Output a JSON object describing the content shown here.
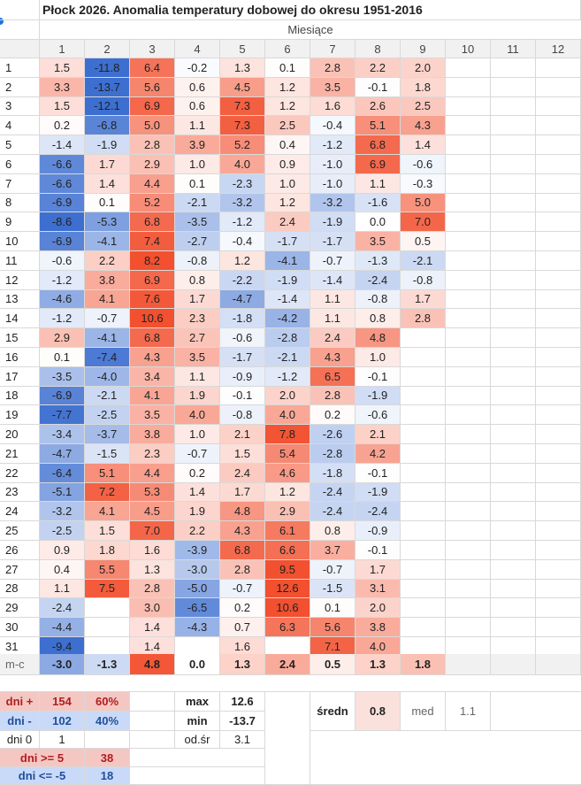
{
  "title": "Płock 2026. Anomalia temperatury dobowej  do okresu 1951-2016",
  "subheader": "Miesiące",
  "months": [
    "1",
    "2",
    "3",
    "4",
    "5",
    "6",
    "7",
    "8",
    "9",
    "10",
    "11",
    "12"
  ],
  "days": [
    "1",
    "2",
    "3",
    "4",
    "5",
    "6",
    "7",
    "8",
    "9",
    "10",
    "11",
    "12",
    "13",
    "14",
    "15",
    "16",
    "17",
    "18",
    "19",
    "20",
    "21",
    "22",
    "23",
    "24",
    "25",
    "26",
    "27",
    "28",
    "29",
    "30",
    "31"
  ],
  "columns": [
    [
      "1.5",
      "3.3",
      "1.5",
      "0.2",
      "-1.4",
      "-6.6",
      "-6.6",
      "-6.9",
      "-8.6",
      "-6.9",
      "-0.6",
      "-1.2",
      "-4.6",
      "-1.2",
      "2.9",
      "0.1",
      "-3.5",
      "-6.9",
      "-7.7",
      "-3.4",
      "-4.7",
      "-6.4",
      "-5.1",
      "-3.2",
      "-2.5",
      "0.9",
      "0.4",
      "1.1",
      "-2.4",
      "-4.4",
      "-9.4"
    ],
    [
      "-11.8",
      "-13.7",
      "-12.1",
      "-6.8",
      "-1.9",
      "1.7",
      "1.4",
      "0.1",
      "-5.3",
      "-4.1",
      "2.2",
      "3.8",
      "4.1",
      "-0.7",
      "-4.1",
      "-7.4",
      "-4.0",
      "-2.1",
      "-2.5",
      "-3.7",
      "-1.5",
      "5.1",
      "7.2",
      "4.1",
      "1.5",
      "1.8",
      "5.5",
      "7.5",
      "",
      "",
      ""
    ],
    [
      "6.4",
      "5.6",
      "6.9",
      "5.0",
      "2.8",
      "2.9",
      "4.4",
      "5.2",
      "6.8",
      "7.4",
      "8.2",
      "6.9",
      "7.6",
      "10.6",
      "6.8",
      "4.3",
      "3.4",
      "4.1",
      "3.5",
      "3.8",
      "2.3",
      "4.4",
      "5.3",
      "4.5",
      "7.0",
      "1.6",
      "1.3",
      "2.8",
      "3.0",
      "1.4",
      "1.4"
    ],
    [
      "-0.2",
      "0.6",
      "0.6",
      "1.1",
      "3.9",
      "1.0",
      "0.1",
      "-2.1",
      "-3.5",
      "-2.7",
      "-0.8",
      "0.8",
      "1.7",
      "2.3",
      "2.7",
      "3.5",
      "1.1",
      "1.9",
      "4.0",
      "1.0",
      "-0.7",
      "0.2",
      "1.4",
      "1.9",
      "2.2",
      "-3.9",
      "-3.0",
      "-5.0",
      "-6.5",
      "-4.3",
      ""
    ],
    [
      "1.3",
      "4.5",
      "7.3",
      "7.3",
      "5.2",
      "4.0",
      "-2.3",
      "-3.2",
      "-1.2",
      "-0.4",
      "1.2",
      "-2.2",
      "-4.7",
      "-1.8",
      "-0.6",
      "-1.7",
      "-0.9",
      "-0.1",
      "-0.8",
      "2.1",
      "1.5",
      "2.4",
      "1.7",
      "4.8",
      "4.3",
      "6.8",
      "2.8",
      "-0.7",
      "0.2",
      "0.7",
      "1.6"
    ],
    [
      "0.1",
      "1.2",
      "1.2",
      "2.5",
      "0.4",
      "0.9",
      "1.0",
      "1.2",
      "2.4",
      "-1.7",
      "-4.1",
      "-1.9",
      "-1.4",
      "-4.2",
      "-2.8",
      "-2.1",
      "-1.2",
      "2.0",
      "4.0",
      "7.8",
      "5.4",
      "4.6",
      "1.2",
      "2.9",
      "6.1",
      "6.6",
      "9.5",
      "12.6",
      "10.6",
      "6.3",
      ""
    ],
    [
      "2.8",
      "3.5",
      "1.6",
      "-0.4",
      "-1.2",
      "-1.0",
      "-1.0",
      "-3.2",
      "-1.9",
      "-1.7",
      "-0.7",
      "-1.4",
      "1.1",
      "1.1",
      "2.4",
      "4.3",
      "6.5",
      "2.8",
      "0.2",
      "-2.6",
      "-2.8",
      "-1.8",
      "-2.4",
      "-2.4",
      "0.8",
      "3.7",
      "-0.7",
      "-1.5",
      "0.1",
      "5.6",
      "7.1"
    ],
    [
      "2.2",
      "-0.1",
      "2.6",
      "5.1",
      "6.8",
      "6.9",
      "1.1",
      "-1.6",
      "0.0",
      "3.5",
      "-1.3",
      "-2.4",
      "-0.8",
      "0.8",
      "4.8",
      "1.0",
      "-0.1",
      "-1.9",
      "-0.6",
      "2.1",
      "4.2",
      "-0.1",
      "-1.9",
      "-2.4",
      "-0.9",
      "-0.1",
      "1.7",
      "3.1",
      "2.0",
      "3.8",
      "4.0"
    ],
    [
      "2.0",
      "1.8",
      "2.5",
      "4.3",
      "1.4",
      "-0.6",
      "-0.3",
      "5.0",
      "7.0",
      "0.5",
      "-2.1",
      "-0.8",
      "1.7",
      "2.8",
      "",
      "",
      "",
      "",
      "",
      "",
      "",
      "",
      "",
      "",
      "",
      "",
      "",
      "",
      "",
      "",
      ""
    ]
  ],
  "mean_row": {
    "label": "m-c",
    "values": [
      "-3.0",
      "-1.3",
      "4.8",
      "0.0",
      "1.3",
      "2.4",
      "0.5",
      "1.3",
      "1.8"
    ]
  },
  "stats": {
    "dni_plus_label": "dni +",
    "dni_plus_count": "154",
    "dni_plus_pct": "60%",
    "dni_minus_label": "dni -",
    "dni_minus_count": "102",
    "dni_minus_pct": "40%",
    "dni_zero_label": "dni 0",
    "dni_zero_count": "1",
    "dni_ge5_label": "dni >= 5",
    "dni_ge5_count": "38",
    "dni_le5_label": "dni <= -5",
    "dni_le5_count": "18",
    "max_label": "max",
    "max_value": "12.6",
    "min_label": "min",
    "min_value": "-13.7",
    "odsr_label": "od.śr",
    "odsr_value": "3.1",
    "sredn_label": "średn",
    "sredn_value": "0.8",
    "med_label": "med",
    "med_value": "1.1"
  },
  "colors": {
    "pos_max": "#f2502f",
    "neg_max": "#3d6fd0",
    "grid": "#d9d9d9",
    "header_bg": "#f1f1f1",
    "stat_red_bg": "#f4c7c3",
    "stat_blue_bg": "#c9daf8",
    "stat_red_text": "#b11e1e",
    "stat_blue_text": "#1f4e9a"
  }
}
